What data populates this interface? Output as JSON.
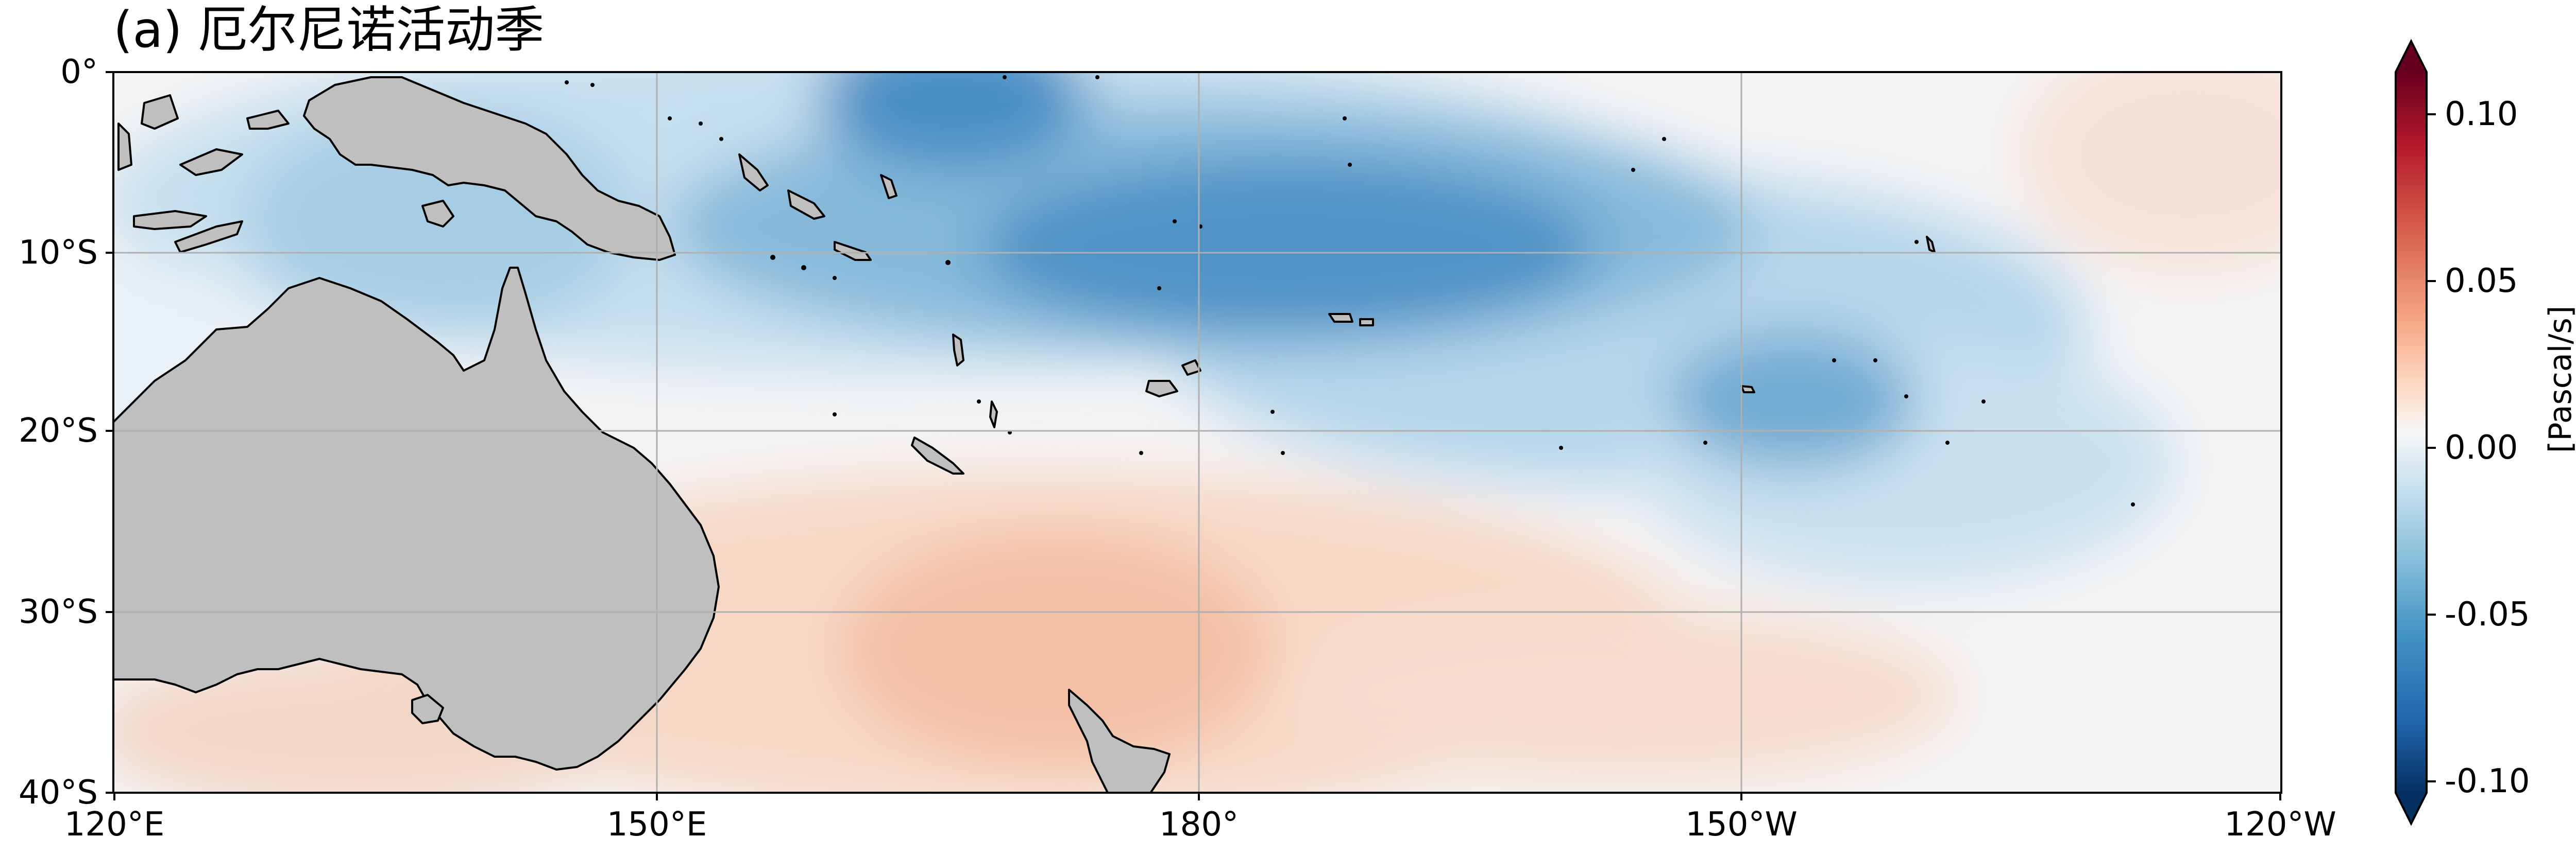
{
  "title": "(a) 厄尔尼诺活动季",
  "map": {
    "region": "Western and central tropical South Pacific",
    "lon_range": [
      "120°E",
      "120°W"
    ],
    "lat_range": [
      "0°",
      "40°S"
    ],
    "land_color": "#bfbfbf",
    "coastline_color": "#000000",
    "gridlines": true,
    "lat_labels": [
      "0°",
      "10°S",
      "20°S",
      "30°S",
      "40°S"
    ],
    "lon_labels": [
      "120°E",
      "150°E",
      "180°",
      "150°W",
      "120°W"
    ],
    "features": [
      "Australia",
      "New Guinea",
      "New Zealand",
      "Solomon Islands",
      "Vanuatu",
      "New Caledonia",
      "Fiji",
      "Samoa",
      "French Polynesia"
    ]
  },
  "colorbar": {
    "colormap": "RdBu_r",
    "label": "[Pascal/s]",
    "min": -0.1,
    "max": 0.1,
    "extend": "both",
    "ticks": [
      "0.10",
      "0.05",
      "0.00",
      "-0.05",
      "-0.10"
    ]
  }
}
